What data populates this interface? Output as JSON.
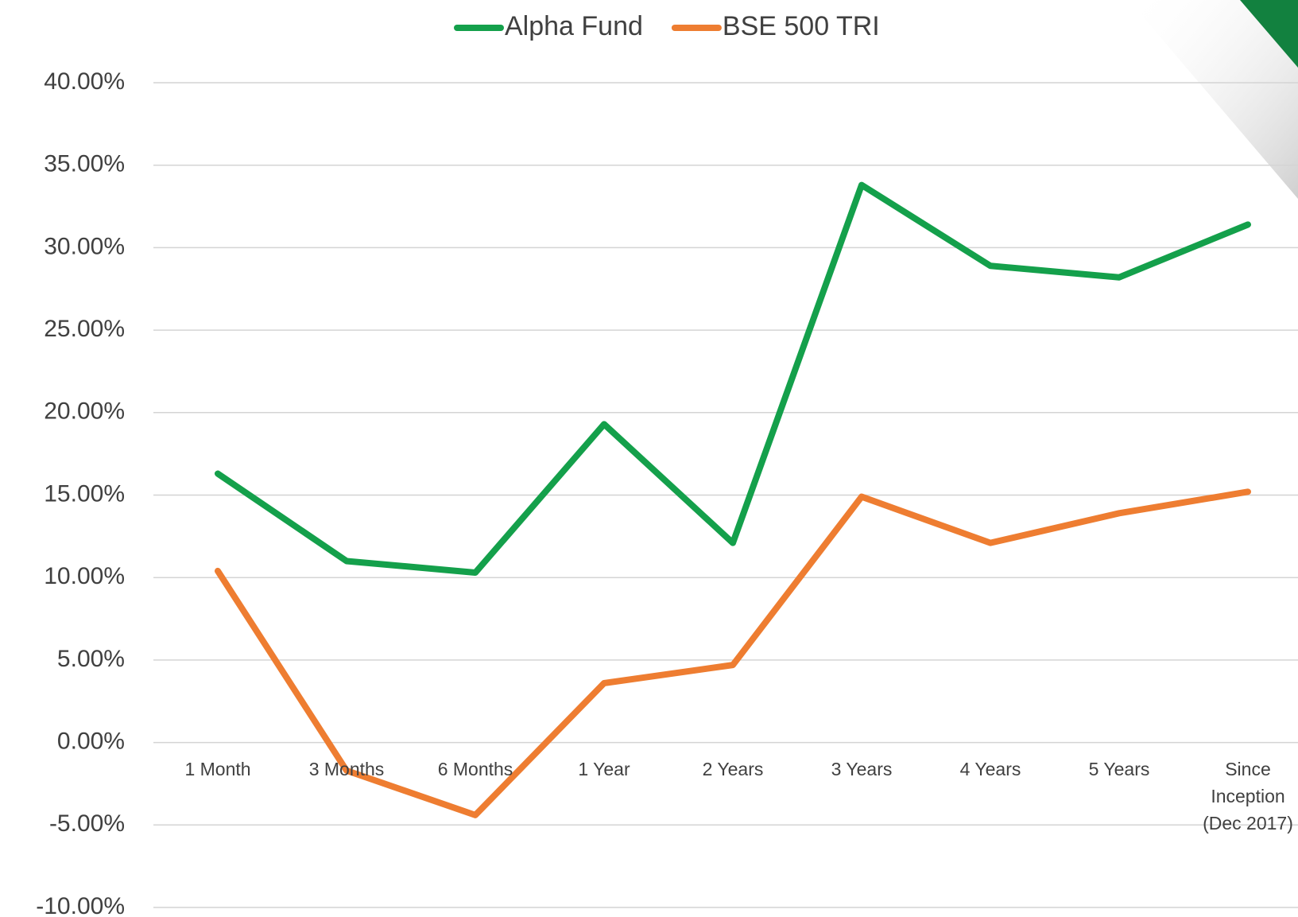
{
  "chart_data": {
    "type": "line",
    "categories": [
      "1 Month",
      "3 Months",
      "6 Months",
      "1 Year",
      "2 Years",
      "3 Years",
      "4 Years",
      "5 Years",
      "Since Inception (Dec 2017)"
    ],
    "series": [
      {
        "name": "Alpha Fund",
        "color": "#14a04b",
        "values": [
          16.3,
          11.0,
          10.3,
          19.3,
          12.1,
          33.8,
          28.9,
          28.2,
          31.4
        ]
      },
      {
        "name": "BSE 500 TRI",
        "color": "#ee7d31",
        "values": [
          10.4,
          -1.7,
          -4.4,
          3.6,
          4.7,
          14.9,
          12.1,
          13.9,
          15.2
        ]
      }
    ],
    "ylim": [
      -10,
      40
    ],
    "yticks": [
      {
        "value": -10,
        "label": "-10.00%"
      },
      {
        "value": -5,
        "label": "-5.00%"
      },
      {
        "value": 0,
        "label": "0.00%"
      },
      {
        "value": 5,
        "label": "5.00%"
      },
      {
        "value": 10,
        "label": "10.00%"
      },
      {
        "value": 15,
        "label": "15.00%"
      },
      {
        "value": 20,
        "label": "20.00%"
      },
      {
        "value": 25,
        "label": "25.00%"
      },
      {
        "value": 30,
        "label": "30.00%"
      },
      {
        "value": 35,
        "label": "35.00%"
      },
      {
        "value": 40,
        "label": "40.00%"
      }
    ],
    "grid": true,
    "legend": "top"
  }
}
